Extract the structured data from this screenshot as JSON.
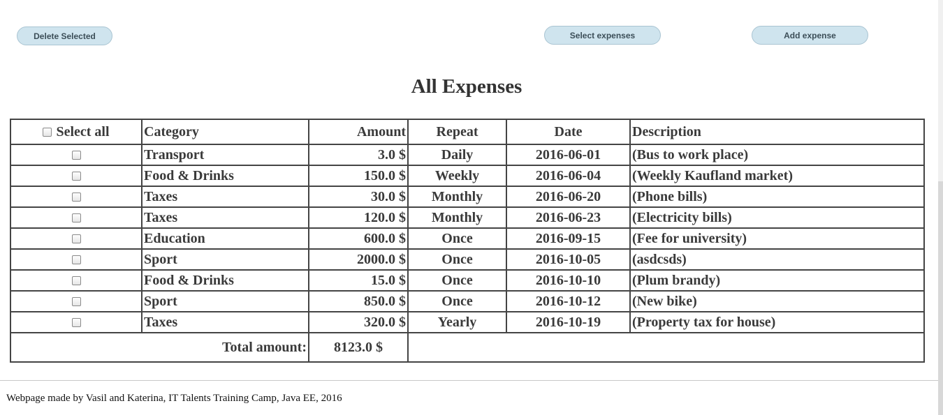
{
  "toolbar": {
    "delete_label": "Delete Selected",
    "select_label": "Select expenses",
    "add_label": "Add expense"
  },
  "page": {
    "title": "All Expenses"
  },
  "table": {
    "headers": {
      "select_all": "Select all",
      "category": "Category",
      "amount": "Amount",
      "repeat": "Repeat",
      "date": "Date",
      "description": "Description"
    },
    "rows": [
      {
        "category": "Transport",
        "amount": "3.0 $",
        "repeat": "Daily",
        "date": "2016-06-01",
        "description": "(Bus to work place)"
      },
      {
        "category": "Food & Drinks",
        "amount": "150.0 $",
        "repeat": "Weekly",
        "date": "2016-06-04",
        "description": "(Weekly Kaufland market)"
      },
      {
        "category": "Taxes",
        "amount": "30.0 $",
        "repeat": "Monthly",
        "date": "2016-06-20",
        "description": "(Phone bills)"
      },
      {
        "category": "Taxes",
        "amount": "120.0 $",
        "repeat": "Monthly",
        "date": "2016-06-23",
        "description": "(Electricity bills)"
      },
      {
        "category": "Education",
        "amount": "600.0 $",
        "repeat": "Once",
        "date": "2016-09-15",
        "description": "(Fee for university)"
      },
      {
        "category": "Sport",
        "amount": "2000.0 $",
        "repeat": "Once",
        "date": "2016-10-05",
        "description": "(asdcsds)"
      },
      {
        "category": "Food & Drinks",
        "amount": "15.0 $",
        "repeat": "Once",
        "date": "2016-10-10",
        "description": "(Plum brandy)"
      },
      {
        "category": "Sport",
        "amount": "850.0 $",
        "repeat": "Once",
        "date": "2016-10-12",
        "description": "(New bike)"
      },
      {
        "category": "Taxes",
        "amount": "320.0 $",
        "repeat": "Yearly",
        "date": "2016-10-19",
        "description": "(Property tax for house)"
      }
    ],
    "total_label": "Total amount:",
    "total_value": "8123.0  $"
  },
  "footer": {
    "text": "Webpage made by Vasil and Katerina, IT Talents Training Camp, Java EE, 2016"
  }
}
